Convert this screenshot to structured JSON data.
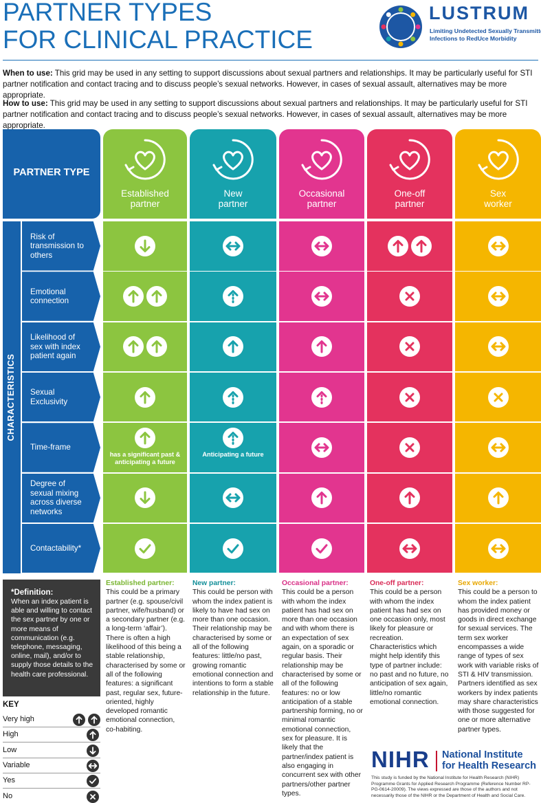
{
  "header": {
    "title_lines": [
      "PARTNER TYPES",
      "FOR CLINICAL PRACTICE"
    ],
    "logo_name": "LUSTRUM",
    "logo_tagline": [
      "Limiting Undetected Sexually Transmitted",
      "Infections to RedUce Morbidity"
    ]
  },
  "intro": [
    {
      "label": "When to use:",
      "text": "This grid may be used in any setting to support discussions about sexual partners and relationships. It may be particularly useful for STI partner notification and contact tracing and to discuss people’s sexual networks. However, in cases of sexual assault, alternatives may be more appropriate."
    },
    {
      "label": "How to use:",
      "text": "This grid may be used in any setting to support discussions about sexual partners and relationships. It may be particularly useful for STI partner notification and contact tracing and to discuss people’s sexual networks. However, in cases of sexual assault, alternatives may be more appropriate."
    }
  ],
  "grid": {
    "header_label": "PARTNER TYPE",
    "side_label": "CHARACTERISTICS",
    "label_color": "#1762ab",
    "columns": [
      {
        "name_lines": [
          "Established",
          "partner"
        ],
        "color": "#8cc540",
        "text_color": "#7ab532"
      },
      {
        "name_lines": [
          "New",
          "partner"
        ],
        "color": "#17a2ad",
        "text_color": "#138f99"
      },
      {
        "name_lines": [
          "Occasional",
          "partner"
        ],
        "color": "#e2358f",
        "text_color": "#d92f86"
      },
      {
        "name_lines": [
          "One-off",
          "partner"
        ],
        "color": "#e4325e",
        "text_color": "#d92c57"
      },
      {
        "name_lines": [
          "Sex",
          "worker"
        ],
        "color": "#f5b600",
        "text_color": "#e8a700"
      }
    ],
    "rows": [
      {
        "label": "Risk of transmission to others",
        "cells": [
          {
            "icon": "down"
          },
          {
            "icon": "var"
          },
          {
            "icon": "var"
          },
          {
            "icon": "upup"
          },
          {
            "icon": "var"
          }
        ]
      },
      {
        "label": "Emotional connection",
        "cells": [
          {
            "icon": "upup"
          },
          {
            "icon": "dotup"
          },
          {
            "icon": "var"
          },
          {
            "icon": "cross"
          },
          {
            "icon": "var"
          }
        ]
      },
      {
        "label": "Likelihood of sex with index patient again",
        "cells": [
          {
            "icon": "upup"
          },
          {
            "icon": "up"
          },
          {
            "icon": "up"
          },
          {
            "icon": "cross"
          },
          {
            "icon": "var"
          }
        ]
      },
      {
        "label": "Sexual Exclusivity",
        "cells": [
          {
            "icon": "up"
          },
          {
            "icon": "dotup"
          },
          {
            "icon": "dotup"
          },
          {
            "icon": "cross"
          },
          {
            "icon": "cross"
          }
        ]
      },
      {
        "label": "Time-frame",
        "cells": [
          {
            "icon": "up",
            "note": "has a significant past & anticipating a future"
          },
          {
            "icon": "dotup",
            "note": "Anticipating a future"
          },
          {
            "icon": "var"
          },
          {
            "icon": "cross"
          },
          {
            "icon": "var"
          }
        ]
      },
      {
        "label": "Degree of sexual mixing across diverse networks",
        "cells": [
          {
            "icon": "down"
          },
          {
            "icon": "var"
          },
          {
            "icon": "up"
          },
          {
            "icon": "up"
          },
          {
            "icon": "up"
          }
        ]
      },
      {
        "label": "Contactability*",
        "cells": [
          {
            "icon": "check"
          },
          {
            "icon": "check"
          },
          {
            "icon": "check"
          },
          {
            "icon": "var"
          },
          {
            "icon": "var"
          }
        ]
      }
    ]
  },
  "descriptions": [
    {
      "title": "Established partner:",
      "text": "This could be a primary partner (e.g. spouse/civil partner, wife/husband) or a secondary partner (e.g. a long-term ‘affair’). There is often a high likelihood of this being a stable relationship, characterised by some or all of the following features: a significant past, regular sex, future-oriented, highly developed romantic emotional connection, co-habiting."
    },
    {
      "title": "New partner:",
      "text": "This could be person with whom the index patient is likely to have had sex on more than one occasion. Their relationship may be characterised by some or all of the following features: little/no past, growing romantic emotional connection and intentions to form a stable relationship in the future."
    },
    {
      "title": "Occasional partner:",
      "text": "This could be a person with whom the index patient has had sex on more than one occasion and with whom there is an expectation of sex again, on a sporadic or regular basis. Their relationship may be characterised by some or all of the following features: no or low anticipation of a stable partnership forming, no or minimal romantic emotional connection, sex for pleasure. It is likely that the partner/index patient is also engaging in concurrent sex with other partners/other partner types."
    },
    {
      "title": "One-off partner:",
      "text": "This could be a person with whom the index patient has had sex on one occasion only, most likely for pleasure or recreation. Characteristics which might help identify this type of partner include: no past and no future, no anticipation of sex again, little/no romantic emotional connection."
    },
    {
      "title": "Sex worker:",
      "text": "This could be a person to whom the index patient has provided money or goods in direct exchange for sexual services. The term sex worker encompasses a wide range of types of sex work with variable risks of STI & HIV transmission. Partners identified as sex workers by index patients may share characteristics with those suggested for one or more alternative partner types."
    }
  ],
  "definition": {
    "title": "*Definition:",
    "text": "When an index patient is able and willing to contact the sex partner by one or more means of communication (e.g. telephone, messaging, online, mail), and/or to supply those details to the health care professional."
  },
  "key": {
    "title": "KEY",
    "items": [
      {
        "label": "Very high",
        "icon": "upup"
      },
      {
        "label": "High",
        "icon": "up"
      },
      {
        "label": "Low",
        "icon": "down"
      },
      {
        "label": "Variable",
        "icon": "var"
      },
      {
        "label": "Yes",
        "icon": "check"
      },
      {
        "label": "No",
        "icon": "cross"
      }
    ]
  },
  "funder": {
    "acronym": "NIHR",
    "name_lines": [
      "National Institute",
      "for Health Research"
    ],
    "statement": "This study is funded by the National Institute for Health Research (NIHR) Programme Grants for Applied Research Programme (Reference Number RP-PG-0614-20009). The views expressed are those of the authors and not necessarily those of the NIHR or the Department of Health and Social Care."
  }
}
